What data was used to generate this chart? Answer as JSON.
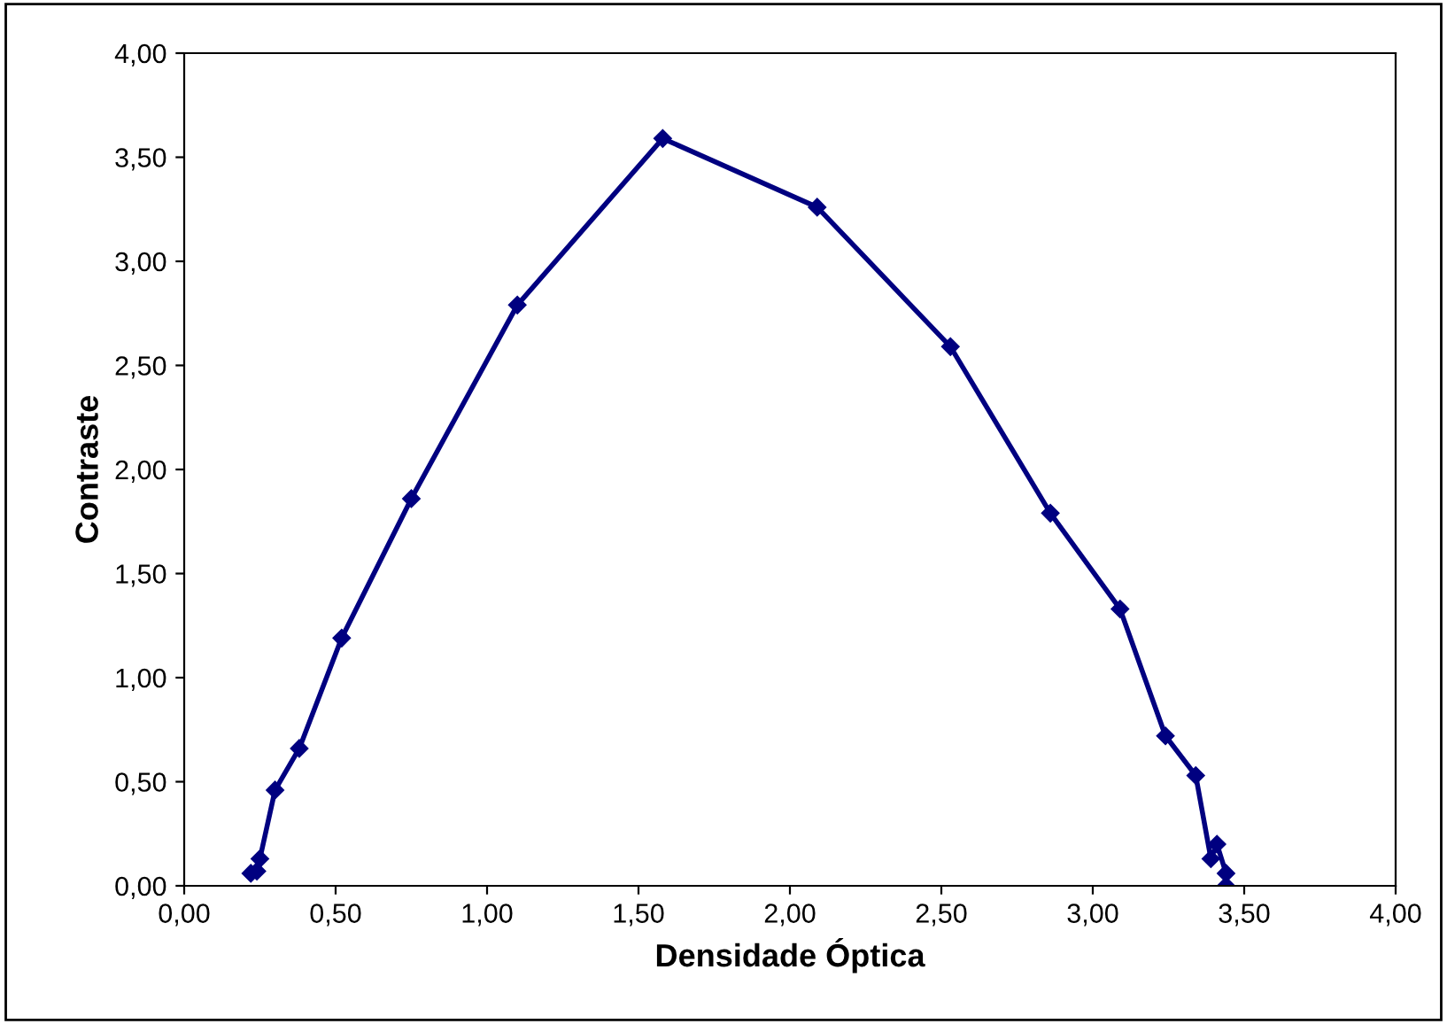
{
  "chart_data": {
    "type": "line",
    "xlabel": "Densidade Óptica",
    "ylabel": "Contraste",
    "x": [
      0.22,
      0.24,
      0.25,
      0.3,
      0.38,
      0.52,
      0.75,
      1.1,
      1.58,
      2.09,
      2.53,
      2.86,
      3.09,
      3.24,
      3.34,
      3.39,
      3.41,
      3.44,
      3.44
    ],
    "series": [
      {
        "color": "#000080",
        "values": [
          0.06,
          0.07,
          0.13,
          0.46,
          0.66,
          1.19,
          1.86,
          2.79,
          3.59,
          3.26,
          2.59,
          1.79,
          1.33,
          0.72,
          0.53,
          0.13,
          0.2,
          0.06,
          0.0
        ]
      }
    ],
    "xlim": [
      0,
      4
    ],
    "xticks": [
      {
        "value": 0,
        "label": "0,00"
      },
      {
        "value": 0.5,
        "label": "0,50"
      },
      {
        "value": 1,
        "label": "1,00"
      },
      {
        "value": 1.5,
        "label": "1,50"
      },
      {
        "value": 2,
        "label": "2,00"
      },
      {
        "value": 2.5,
        "label": "2,50"
      },
      {
        "value": 3,
        "label": "3,00"
      },
      {
        "value": 3.5,
        "label": "3,50"
      },
      {
        "value": 4,
        "label": "4,00"
      }
    ],
    "ylim": [
      0,
      4
    ],
    "yticks": [
      {
        "value": 0,
        "label": "0,00"
      },
      {
        "value": 0.5,
        "label": "0,50"
      },
      {
        "value": 1,
        "label": "1,00"
      },
      {
        "value": 1.5,
        "label": "1,50"
      },
      {
        "value": 2,
        "label": "2,00"
      },
      {
        "value": 2.5,
        "label": "2,50"
      },
      {
        "value": 3,
        "label": "3,00"
      },
      {
        "value": 3.5,
        "label": "3,50"
      },
      {
        "value": 4,
        "label": "4,00"
      }
    ],
    "marker": "diamond",
    "line_style": "solid",
    "grid": false,
    "legend": false
  }
}
